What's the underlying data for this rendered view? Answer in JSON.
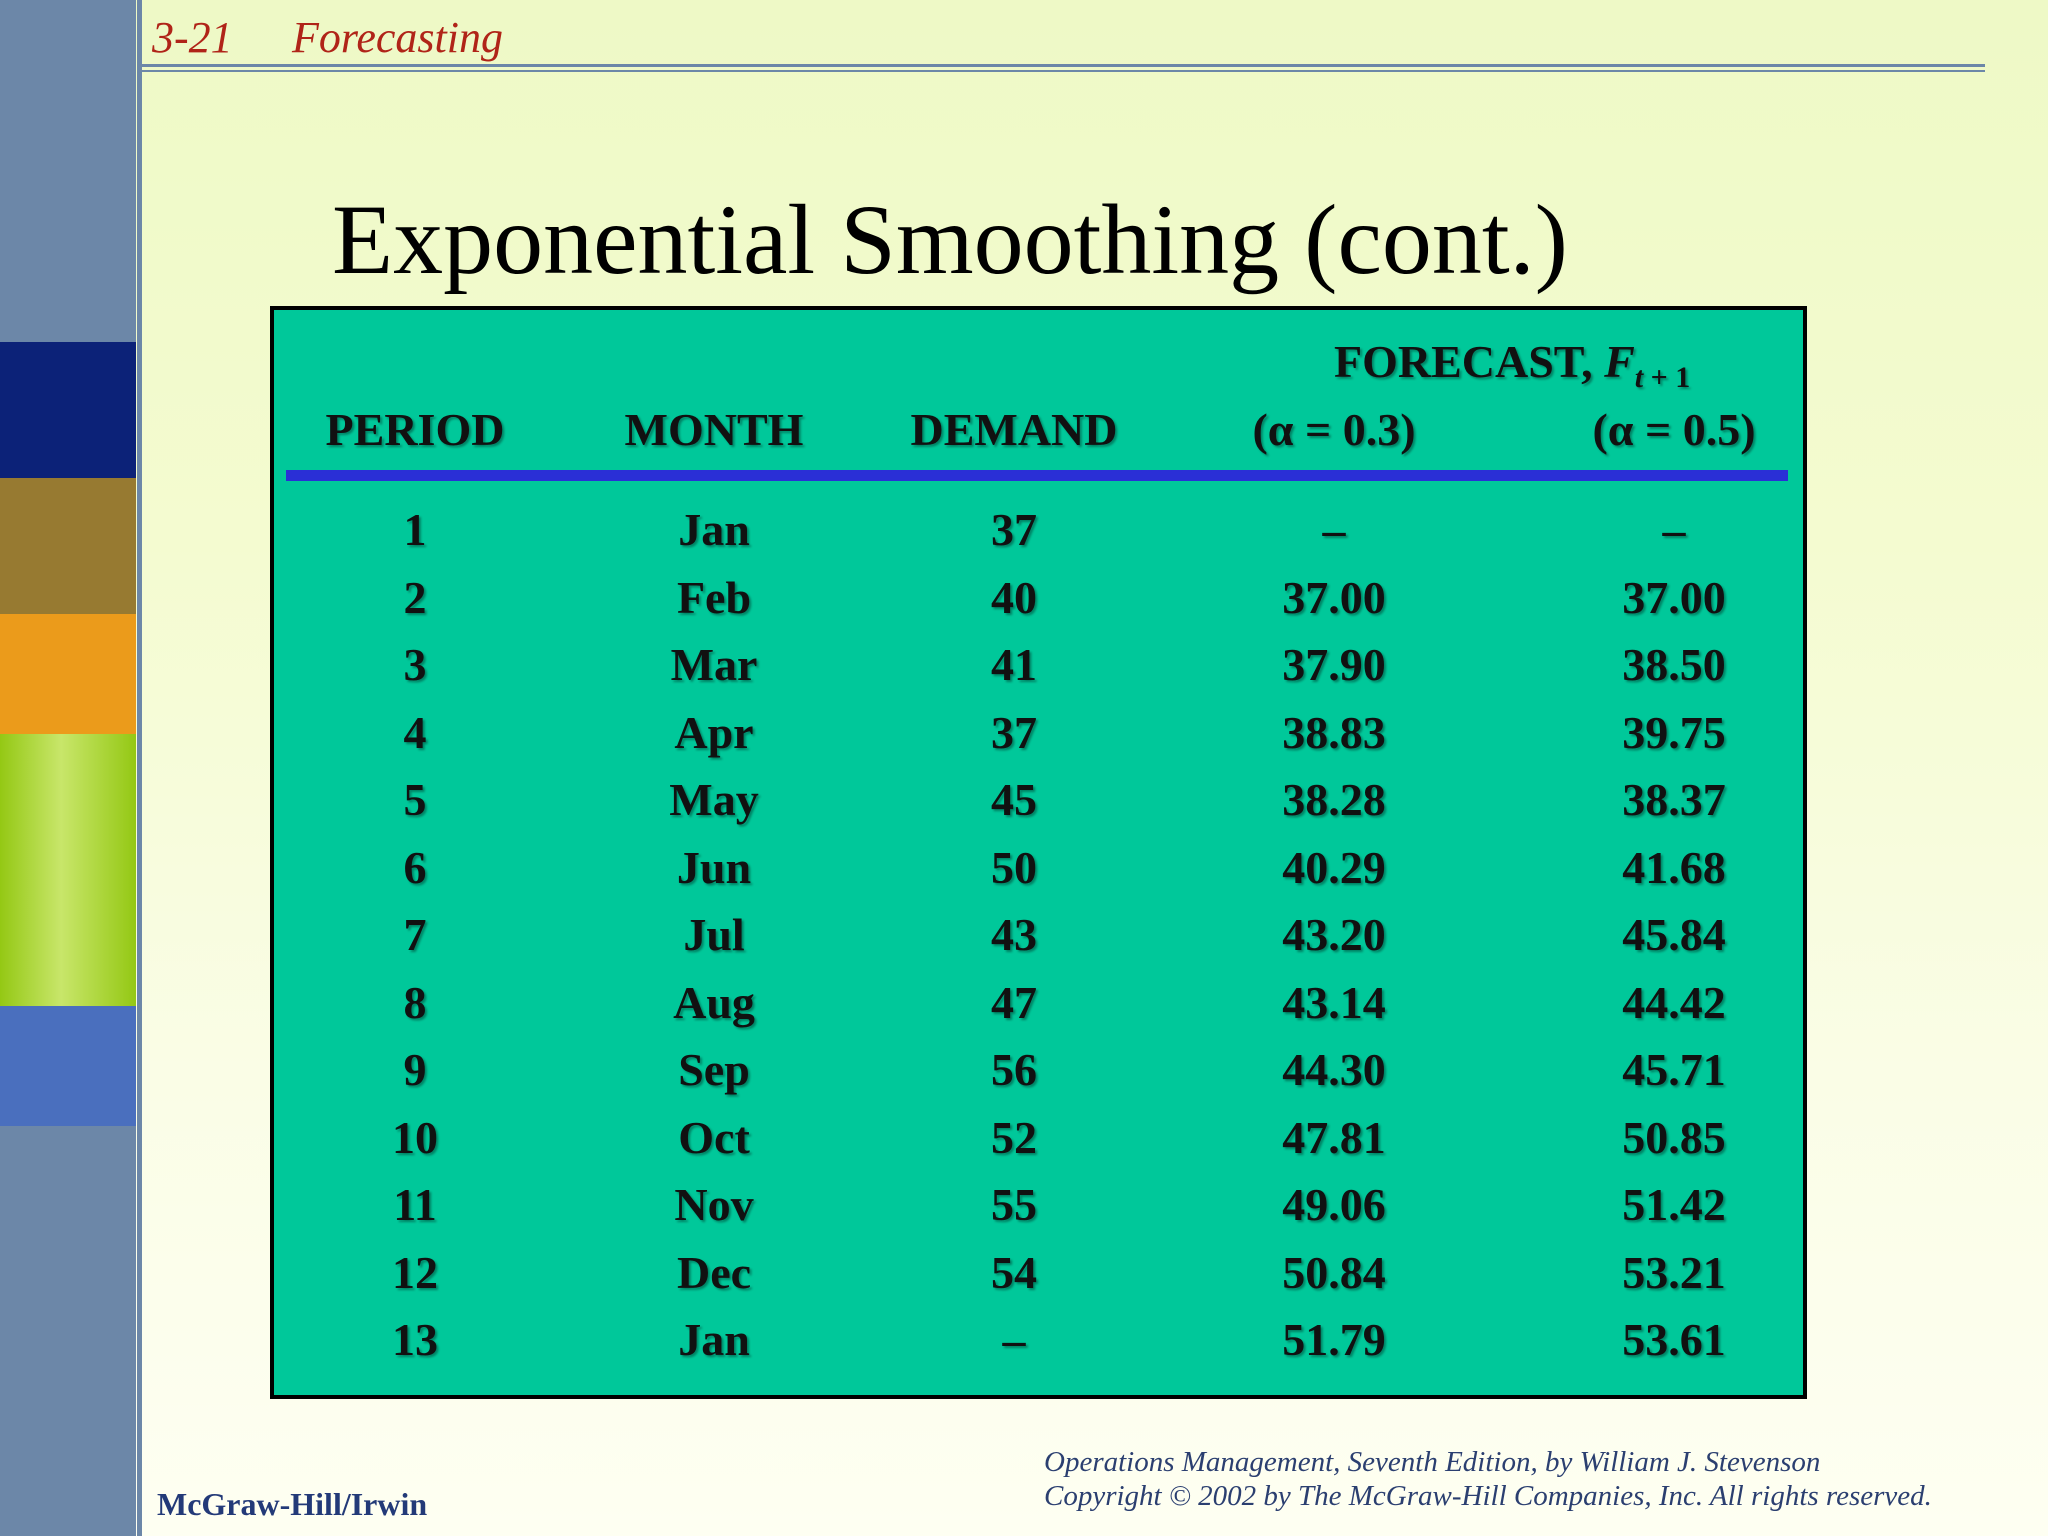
{
  "slide": {
    "number": "3-21",
    "section": "Forecasting"
  },
  "title": "Exponential Smoothing (cont.)",
  "table": {
    "forecast_label": "FORECAST, ",
    "forecast_symbol": "F",
    "forecast_subscript_t": "t",
    "forecast_subscript_rest": " + 1",
    "headers": [
      "PERIOD",
      "MONTH",
      "DEMAND",
      "(α = 0.3)",
      "(α = 0.5)"
    ],
    "rows": [
      [
        "1",
        "Jan",
        "37",
        "–",
        "–"
      ],
      [
        "2",
        "Feb",
        "40",
        "37.00",
        "37.00"
      ],
      [
        "3",
        "Mar",
        "41",
        "37.90",
        "38.50"
      ],
      [
        "4",
        "Apr",
        "37",
        "38.83",
        "39.75"
      ],
      [
        "5",
        "May",
        "45",
        "38.28",
        "38.37"
      ],
      [
        "6",
        "Jun",
        "50",
        "40.29",
        "41.68"
      ],
      [
        "7",
        "Jul",
        "43",
        "43.20",
        "45.84"
      ],
      [
        "8",
        "Aug",
        "47",
        "43.14",
        "44.42"
      ],
      [
        "9",
        "Sep",
        "56",
        "44.30",
        "45.71"
      ],
      [
        "10",
        "Oct",
        "52",
        "47.81",
        "50.85"
      ],
      [
        "11",
        "Nov",
        "55",
        "49.06",
        "51.42"
      ],
      [
        "12",
        "Dec",
        "54",
        "50.84",
        "53.21"
      ],
      [
        "13",
        "Jan",
        "–",
        "51.79",
        "53.61"
      ]
    ]
  },
  "footer": {
    "publisher": "McGraw-Hill/Irwin",
    "book_line": "Operations Management, Seventh Edition, by William J. Stevenson",
    "copyright_line": "Copyright © 2002 by The McGraw-Hill Companies, Inc.  All rights reserved."
  },
  "colors": {
    "sidebar": "#6c87a8",
    "block_navy": "#0c2278",
    "block_olive": "#977a31",
    "block_orange": "#eb9b1b",
    "block_green": "#9ccb1e",
    "block_blue": "#4a6fbe",
    "table_bg": "#00c89a",
    "rule": "#2a2fd6",
    "header_red": "#b02418"
  }
}
